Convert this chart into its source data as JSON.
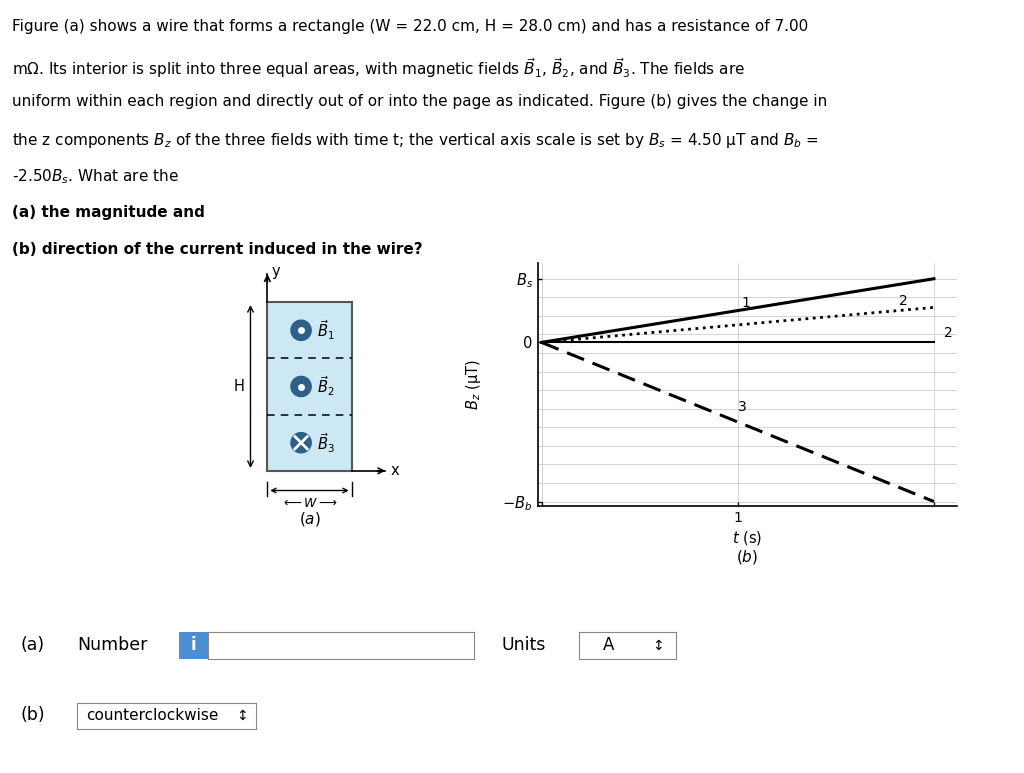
{
  "bg_color": "#ffffff",
  "Bs": 4.5,
  "Bb": 11.25,
  "t_max": 2.0,
  "text_lines": [
    "Figure (a) shows a wire that forms a rectangle (W = 22.0 cm, H = 28.0 cm) and has a resistance of 7.00",
    "mΩ. Its interior is split into three equal areas, with magnetic fields $\\vec{B}_1$, $\\vec{B}_2$, and $\\vec{B}_3$. The fields are",
    "uniform within each region and directly out of or into the page as indicated. Figure (b) gives the change in",
    "the z components $B_z$ of the three fields with time t; the vertical axis scale is set by $B_s$ = 4.50 μT and $B_b$ =",
    "-2.50$B_s$. What are the"
  ],
  "bold_lines": [
    "(a) the magnitude and",
    "(b) direction of the current induced in the wire?"
  ],
  "answer_b": "counterclockwise"
}
